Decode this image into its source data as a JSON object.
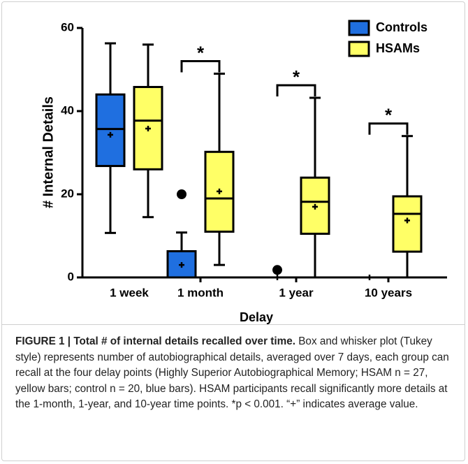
{
  "chart_data": {
    "type": "box",
    "ylabel": "# Internal Details",
    "xlabel": "Delay",
    "categories": [
      "1 week",
      "1 month",
      "1 year",
      "10 years"
    ],
    "ylim": [
      0,
      60
    ],
    "yticks": [
      0,
      20,
      40,
      60
    ],
    "legend": "top-right",
    "series": [
      {
        "name": "Controls",
        "color": "#1f6fe0",
        "values": [
          {
            "min": 10.7,
            "q1": 26.8,
            "median": 35.7,
            "q3": 44,
            "max": 56.3,
            "mean": 34.3
          },
          {
            "min": 0,
            "q1": 0,
            "median": 0,
            "q3": 6.3,
            "max": 10.8,
            "mean": 3
          },
          {
            "min": 0,
            "q1": 0,
            "median": 0,
            "q3": 0,
            "max": 0,
            "mean": 0
          },
          {
            "min": 0,
            "q1": 0,
            "median": 0,
            "q3": 0,
            "max": 0,
            "mean": 0
          }
        ],
        "outliers": [
          [],
          [
            20
          ],
          [
            1.8
          ],
          []
        ]
      },
      {
        "name": "HSAMs",
        "color": "#ffff66",
        "values": [
          {
            "min": 14.5,
            "q1": 26,
            "median": 37.7,
            "q3": 45.8,
            "max": 56,
            "mean": 35.8
          },
          {
            "min": 3,
            "q1": 11,
            "median": 19,
            "q3": 30.2,
            "max": 49,
            "mean": 20.7
          },
          {
            "min": 0,
            "q1": 10.5,
            "median": 18.2,
            "q3": 24,
            "max": 43.2,
            "mean": 17
          },
          {
            "min": 0,
            "q1": 6.2,
            "median": 15.3,
            "q3": 19.5,
            "max": 34,
            "mean": 13.7
          }
        ],
        "outliers": [
          [],
          [],
          [],
          []
        ]
      }
    ],
    "annotations": [
      null,
      "*",
      "*",
      "*"
    ]
  },
  "caption": {
    "title": "FIGURE 1 | Total # of internal details recalled over time.",
    "body": "Box and whisker plot (Tukey style) represents number of autobiographical details, averaged over 7 days, each group can recall at the four delay points (Highly Superior Autobiographical Memory; HSAM n = 27, yellow bars; control n = 20, blue bars). HSAM participants recall significantly more details at the 1-month, 1-year, and 10-year time points. *p < 0.001. “+” indicates average value."
  }
}
